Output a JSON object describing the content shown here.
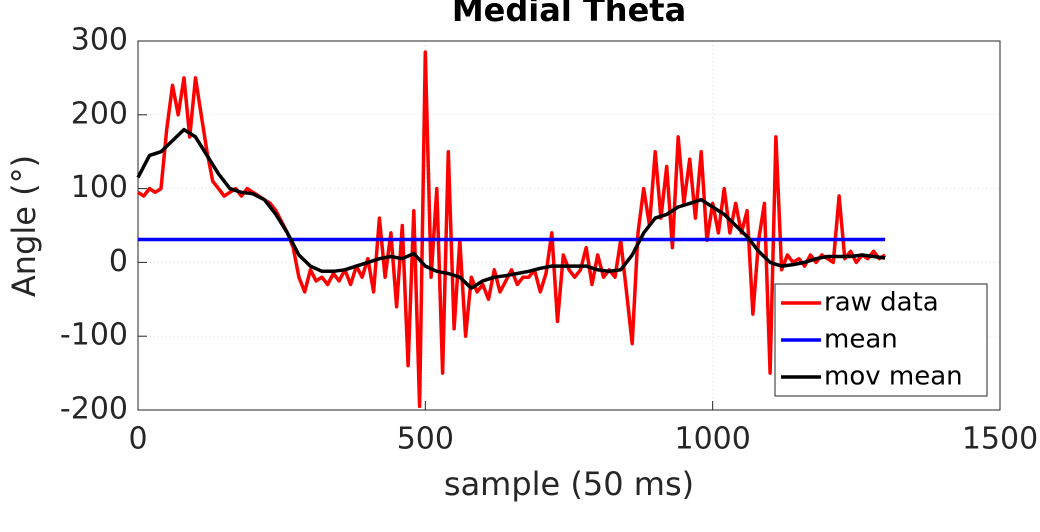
{
  "chart_data": {
    "type": "line",
    "title": "Medial Theta",
    "x_label": "sample (50 ms)",
    "y_label": "Angle (°)",
    "xlim": [
      0,
      1500
    ],
    "ylim": [
      -200,
      300
    ],
    "xticks": [
      0,
      500,
      1000,
      1500
    ],
    "yticks": [
      -200,
      -100,
      0,
      100,
      200,
      300
    ],
    "grid": true,
    "legend_position": "southeast",
    "series": [
      {
        "name": "raw data",
        "color": "#ff0000",
        "x": [
          0,
          10,
          20,
          30,
          40,
          50,
          60,
          70,
          80,
          90,
          100,
          110,
          120,
          130,
          140,
          150,
          160,
          170,
          180,
          190,
          200,
          210,
          220,
          230,
          240,
          250,
          260,
          270,
          280,
          290,
          300,
          310,
          320,
          330,
          340,
          350,
          360,
          370,
          380,
          390,
          400,
          410,
          420,
          430,
          440,
          450,
          460,
          470,
          480,
          490,
          500,
          510,
          520,
          530,
          540,
          550,
          560,
          570,
          580,
          590,
          600,
          610,
          620,
          630,
          640,
          650,
          660,
          670,
          680,
          690,
          700,
          710,
          720,
          730,
          740,
          750,
          760,
          770,
          780,
          790,
          800,
          810,
          820,
          830,
          840,
          850,
          860,
          870,
          880,
          890,
          900,
          910,
          920,
          930,
          940,
          950,
          960,
          970,
          980,
          990,
          1000,
          1010,
          1020,
          1030,
          1040,
          1050,
          1060,
          1070,
          1080,
          1090,
          1100,
          1110,
          1120,
          1130,
          1140,
          1150,
          1160,
          1170,
          1180,
          1190,
          1200,
          1210,
          1220,
          1230,
          1240,
          1250,
          1260,
          1270,
          1280,
          1290,
          1300
        ],
        "values": [
          95,
          90,
          100,
          95,
          100,
          180,
          240,
          200,
          250,
          170,
          250,
          200,
          150,
          110,
          100,
          90,
          95,
          100,
          90,
          100,
          95,
          90,
          85,
          80,
          70,
          55,
          40,
          20,
          -20,
          -40,
          -10,
          -25,
          -20,
          -30,
          -15,
          -25,
          -10,
          -30,
          -5,
          -20,
          5,
          -40,
          60,
          -20,
          40,
          -60,
          50,
          -140,
          70,
          -195,
          285,
          -20,
          100,
          -150,
          150,
          -90,
          30,
          -100,
          -20,
          -40,
          -30,
          -50,
          -10,
          -40,
          -25,
          -10,
          -30,
          -20,
          -20,
          -10,
          -40,
          -15,
          40,
          -80,
          10,
          -10,
          -20,
          -10,
          20,
          -30,
          10,
          -20,
          -10,
          -20,
          30,
          -40,
          -110,
          40,
          100,
          50,
          150,
          60,
          130,
          20,
          170,
          80,
          140,
          60,
          150,
          30,
          80,
          40,
          100,
          40,
          80,
          40,
          70,
          -70,
          30,
          80,
          -150,
          170,
          -10,
          10,
          0,
          5,
          -5,
          10,
          0,
          10,
          5,
          0,
          90,
          5,
          15,
          0,
          10,
          5,
          15,
          5,
          10
        ]
      },
      {
        "name": "mean",
        "color": "#0000ff",
        "x": [
          0,
          1300
        ],
        "values": [
          31,
          31
        ]
      },
      {
        "name": "mov mean",
        "color": "#000000",
        "x": [
          0,
          20,
          40,
          60,
          80,
          100,
          120,
          140,
          160,
          180,
          200,
          220,
          240,
          260,
          280,
          300,
          320,
          340,
          360,
          380,
          400,
          420,
          440,
          460,
          480,
          500,
          520,
          540,
          560,
          580,
          600,
          620,
          640,
          660,
          680,
          700,
          720,
          740,
          760,
          780,
          800,
          820,
          840,
          860,
          880,
          900,
          920,
          940,
          960,
          980,
          1000,
          1020,
          1040,
          1060,
          1080,
          1100,
          1120,
          1140,
          1160,
          1180,
          1200,
          1220,
          1240,
          1260,
          1280,
          1300
        ],
        "values": [
          115,
          145,
          150,
          165,
          180,
          170,
          145,
          120,
          100,
          95,
          93,
          85,
          65,
          40,
          10,
          -5,
          -12,
          -12,
          -10,
          -5,
          0,
          5,
          8,
          5,
          12,
          -5,
          -12,
          -15,
          -20,
          -35,
          -25,
          -20,
          -18,
          -15,
          -12,
          -8,
          -5,
          -5,
          -5,
          -5,
          -10,
          -12,
          -10,
          10,
          40,
          60,
          65,
          75,
          80,
          85,
          75,
          65,
          50,
          35,
          15,
          0,
          -5,
          -3,
          0,
          5,
          8,
          8,
          8,
          10,
          8,
          6
        ]
      }
    ]
  }
}
